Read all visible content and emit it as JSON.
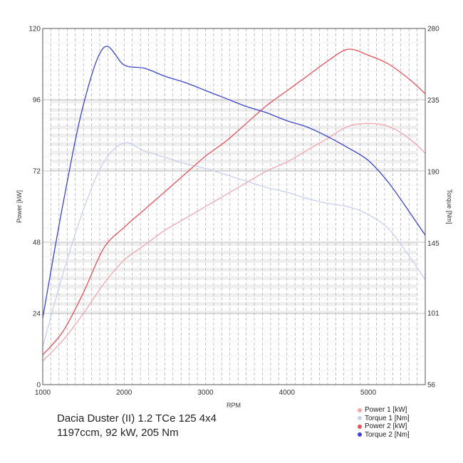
{
  "chart_data": {
    "type": "line",
    "x": [
      1000,
      1250,
      1500,
      1750,
      2000,
      2250,
      2500,
      2750,
      3000,
      3250,
      3500,
      3750,
      4000,
      4250,
      4500,
      4750,
      5000,
      5250,
      5500,
      5700
    ],
    "xlabel": "RPM",
    "ylabel": "Power [kW]",
    "y2label": "Torque [Nm]",
    "xlim": [
      1000,
      5700
    ],
    "ylim": [
      0,
      120
    ],
    "y2lim": [
      56,
      280
    ],
    "xticks": [
      1000,
      2000,
      3000,
      4000,
      5000
    ],
    "yticks": [
      0,
      24,
      48,
      72,
      96,
      120
    ],
    "y2ticks": [
      56,
      101,
      145,
      190,
      235,
      280
    ],
    "grid": true,
    "legend_position": "bottom-right",
    "series": [
      {
        "name": "Power 1 [kW]",
        "axis": "left",
        "color": "#f4a6ae",
        "values": [
          8,
          15,
          24,
          34,
          42,
          47,
          52,
          56,
          60,
          64,
          68,
          72,
          75,
          79,
          83,
          87,
          88,
          87,
          83,
          78
        ]
      },
      {
        "name": "Torque 1 [Nm]",
        "axis": "right",
        "color": "#c8d0f2",
        "values": [
          80,
          126,
          166,
          196,
          208,
          203,
          199,
          195,
          192,
          188,
          184,
          180,
          177,
          173,
          170,
          168,
          163,
          154,
          137,
          122
        ]
      },
      {
        "name": "Power 2 [kW]",
        "axis": "left",
        "color": "#e8505a",
        "values": [
          10,
          18,
          31,
          46,
          53,
          59,
          65,
          71,
          77,
          82,
          88,
          94,
          99,
          104,
          109,
          113,
          111,
          108,
          103,
          98
        ]
      },
      {
        "name": "Torque 2 [Nm]",
        "axis": "right",
        "color": "#3a44cc",
        "values": [
          98,
          170,
          232,
          268,
          257,
          255,
          250,
          246,
          241,
          236,
          231,
          227,
          222,
          218,
          212,
          205,
          197,
          183,
          165,
          150
        ]
      }
    ]
  },
  "caption": {
    "line1": "Dacia Duster (II) 1.2 TCe 125 4x4",
    "line2": "1197ccm, 92 kW, 205 Nm"
  }
}
